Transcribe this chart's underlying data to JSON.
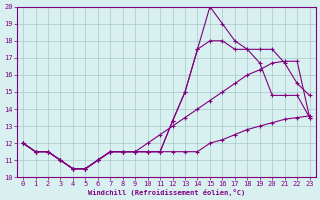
{
  "xlabel": "Windchill (Refroidissement éolien,°C)",
  "x_hours": [
    0,
    1,
    2,
    3,
    4,
    5,
    6,
    7,
    8,
    9,
    10,
    11,
    12,
    13,
    14,
    15,
    16,
    17,
    18,
    19,
    20,
    21,
    22,
    23
  ],
  "line1": [
    12,
    11.5,
    11.5,
    11,
    10.5,
    10.5,
    11,
    11.5,
    11.5,
    11.5,
    11.5,
    11.5,
    13.3,
    15.0,
    17.5,
    20.0,
    19.0,
    18.0,
    17.5,
    17.5,
    17.5,
    16.7,
    15.5,
    14.8
  ],
  "line2": [
    12,
    11.5,
    11.5,
    11,
    10.5,
    10.5,
    11,
    11.5,
    11.5,
    11.5,
    11.5,
    11.5,
    13.3,
    15.0,
    17.5,
    18.0,
    18.0,
    17.5,
    17.5,
    16.7,
    14.8,
    14.8,
    14.8,
    13.5
  ],
  "line3": [
    12,
    11.5,
    11.5,
    11,
    10.5,
    10.5,
    11,
    11.5,
    11.5,
    11.5,
    12.0,
    12.5,
    13.0,
    13.5,
    14.0,
    14.5,
    15.0,
    15.5,
    16.0,
    16.3,
    16.7,
    16.8,
    16.8,
    13.5
  ],
  "line4": [
    12,
    11.5,
    11.5,
    11,
    10.5,
    10.5,
    11,
    11.5,
    11.5,
    11.5,
    11.5,
    11.5,
    11.5,
    11.5,
    11.5,
    12.0,
    12.2,
    12.5,
    12.8,
    13.0,
    13.2,
    13.4,
    13.5,
    13.6
  ],
  "line_color": "#800080",
  "bg_color": "#d8f0f0",
  "grid_color": "#a8c8c8",
  "ylim": [
    10,
    20
  ],
  "yticks": [
    10,
    11,
    12,
    13,
    14,
    15,
    16,
    17,
    18,
    19,
    20
  ],
  "xticks": [
    0,
    1,
    2,
    3,
    4,
    5,
    6,
    7,
    8,
    9,
    10,
    11,
    12,
    13,
    14,
    15,
    16,
    17,
    18,
    19,
    20,
    21,
    22,
    23
  ]
}
